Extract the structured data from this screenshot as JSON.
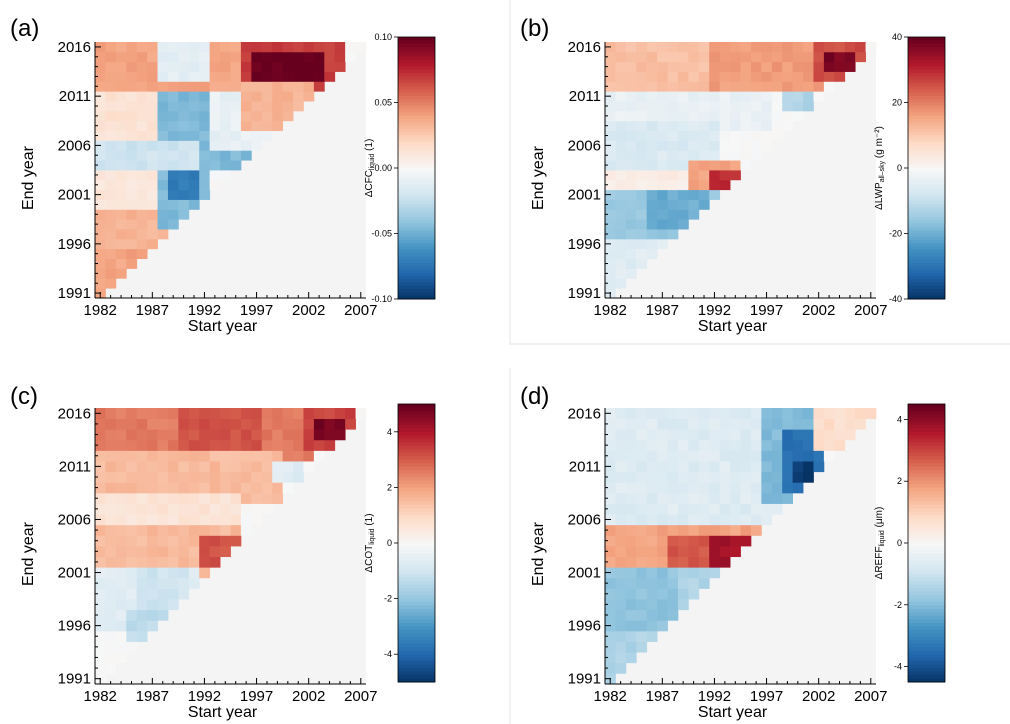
{
  "chart_data": [
    {
      "type": "heatmap",
      "panel_label": "(a)",
      "xlabel": "Start year",
      "ylabel": "End year",
      "x_ticks": [
        1982,
        1987,
        1992,
        1997,
        2002,
        2007
      ],
      "y_ticks": [
        1991,
        1996,
        2001,
        2006,
        2011,
        2016
      ],
      "x_range": [
        1982,
        2007
      ],
      "y_range": [
        1991,
        2016
      ],
      "colorbar": {
        "label_main": "ΔCFC",
        "label_sub": "liquid",
        "label_unit": " (1)",
        "range": [
          -0.1,
          0.1
        ],
        "ticks": [
          "0.10",
          "0.05",
          "0.00",
          "-0.05",
          "-0.10"
        ]
      },
      "features": [
        {
          "s0": 1982,
          "s1": 1996,
          "e0": 2012,
          "e1": 2016,
          "v": 0.04
        },
        {
          "s0": 1996,
          "s1": 2005,
          "e0": 2012,
          "e1": 2016,
          "v": 0.07
        },
        {
          "s0": 1997,
          "s1": 2003,
          "e0": 2013,
          "e1": 2015,
          "v": 0.1
        },
        {
          "s0": 1988,
          "s1": 1992,
          "e0": 2013,
          "e1": 2016,
          "v": -0.01
        },
        {
          "s0": 1982,
          "s1": 1992,
          "e0": 1995,
          "e1": 1999,
          "v": 0.035
        },
        {
          "s0": 1982,
          "s1": 1986,
          "e0": 1991,
          "e1": 1995,
          "v": 0.04
        },
        {
          "s0": 1982,
          "s1": 1988,
          "e0": 2000,
          "e1": 2004,
          "v": 0.012
        },
        {
          "s0": 1982,
          "s1": 1988,
          "e0": 2005,
          "e1": 2011,
          "v": 0.015
        },
        {
          "s0": 1988,
          "s1": 1992,
          "e0": 1998,
          "e1": 2011,
          "v": -0.045
        },
        {
          "s0": 1989,
          "s1": 1991,
          "e0": 2001,
          "e1": 2006,
          "v": -0.07
        },
        {
          "s0": 1982,
          "s1": 1996,
          "e0": 2004,
          "e1": 2006,
          "v": -0.02
        },
        {
          "s0": 1992,
          "s1": 1997,
          "e0": 2004,
          "e1": 2006,
          "v": -0.045
        },
        {
          "s0": 1993,
          "s1": 1999,
          "e0": 2006,
          "e1": 2011,
          "v": -0.008
        },
        {
          "s0": 1996,
          "s1": 2002,
          "e0": 2008,
          "e1": 2012,
          "v": 0.035
        }
      ]
    },
    {
      "type": "heatmap",
      "panel_label": "(b)",
      "xlabel": "Start year",
      "ylabel": "End year",
      "x_ticks": [
        1982,
        1987,
        1992,
        1997,
        2002,
        2007
      ],
      "y_ticks": [
        1991,
        1996,
        2001,
        2006,
        2011,
        2016
      ],
      "x_range": [
        1982,
        2007
      ],
      "y_range": [
        1991,
        2016
      ],
      "colorbar": {
        "label_main": "ΔLWP",
        "label_sub": "all–sky",
        "label_unit": " (g m⁻²)",
        "range": [
          -40,
          40
        ],
        "ticks": [
          "40",
          "20",
          "0",
          "-20",
          "-40"
        ]
      },
      "features": [
        {
          "s0": 1982,
          "s1": 1992,
          "e0": 2012,
          "e1": 2016,
          "v": 12
        },
        {
          "s0": 1992,
          "s1": 2002,
          "e0": 2012,
          "e1": 2016,
          "v": 17
        },
        {
          "s0": 2002,
          "s1": 2006,
          "e0": 2013,
          "e1": 2016,
          "v": 26
        },
        {
          "s0": 2003,
          "s1": 2005,
          "e0": 2014,
          "e1": 2015,
          "v": 38
        },
        {
          "s0": 1982,
          "s1": 1997,
          "e0": 2008,
          "e1": 2011,
          "v": -3
        },
        {
          "s0": 1982,
          "s1": 1992,
          "e0": 2004,
          "e1": 2008,
          "v": -6
        },
        {
          "s0": 1982,
          "s1": 1990,
          "e0": 2002,
          "e1": 2003,
          "v": 3
        },
        {
          "s0": 1990,
          "s1": 1994,
          "e0": 2002,
          "e1": 2004,
          "v": 16
        },
        {
          "s0": 1992,
          "s1": 1994,
          "e0": 2002,
          "e1": 2003,
          "v": 30
        },
        {
          "s0": 1982,
          "s1": 1992,
          "e0": 1996,
          "e1": 2001,
          "v": -15
        },
        {
          "s0": 1986,
          "s1": 1991,
          "e0": 1998,
          "e1": 2001,
          "v": -20
        },
        {
          "s0": 1982,
          "s1": 1990,
          "e0": 1991,
          "e1": 1996,
          "v": -5
        },
        {
          "s0": 1999,
          "s1": 2001,
          "e0": 2010,
          "e1": 2011,
          "v": -12
        }
      ]
    },
    {
      "type": "heatmap",
      "panel_label": "(c)",
      "xlabel": "Start year",
      "ylabel": "End year",
      "x_ticks": [
        1982,
        1987,
        1992,
        1997,
        2002,
        2007
      ],
      "y_ticks": [
        1991,
        1996,
        2001,
        2006,
        2011,
        2016
      ],
      "x_range": [
        1982,
        2007
      ],
      "y_range": [
        1991,
        2016
      ],
      "colorbar": {
        "label_main": "ΔCOT",
        "label_sub": "liquid",
        "label_unit": " (1)",
        "range": [
          -5,
          5
        ],
        "ticks": [
          "4",
          "2",
          "0",
          "-2",
          "-4"
        ]
      },
      "features": [
        {
          "s0": 1982,
          "s1": 2002,
          "e0": 2012,
          "e1": 2016,
          "v": 2.6
        },
        {
          "s0": 1990,
          "s1": 1997,
          "e0": 2013,
          "e1": 2016,
          "v": 3.2
        },
        {
          "s0": 1982,
          "s1": 1999,
          "e0": 2008,
          "e1": 2012,
          "v": 1.6
        },
        {
          "s0": 1982,
          "s1": 1995,
          "e0": 2005,
          "e1": 2008,
          "v": 0.7
        },
        {
          "s0": 1982,
          "s1": 1995,
          "e0": 2001,
          "e1": 2005,
          "v": 1.6
        },
        {
          "s0": 1992,
          "s1": 1995,
          "e0": 2002,
          "e1": 2004,
          "v": 3.2
        },
        {
          "s0": 2002,
          "s1": 2006,
          "e0": 2013,
          "e1": 2016,
          "v": 3.4
        },
        {
          "s0": 2003,
          "s1": 2005,
          "e0": 2014,
          "e1": 2015,
          "v": 4.8
        },
        {
          "s0": 1982,
          "s1": 1991,
          "e0": 1996,
          "e1": 2001,
          "v": -0.6
        },
        {
          "s0": 1986,
          "s1": 1990,
          "e0": 1998,
          "e1": 2001,
          "v": -1.0
        },
        {
          "s0": 1985,
          "s1": 1988,
          "e0": 1995,
          "e1": 1997,
          "v": -1.3
        },
        {
          "s0": 1999,
          "s1": 2001,
          "e0": 2010,
          "e1": 2011,
          "v": -0.6
        }
      ]
    },
    {
      "type": "heatmap",
      "panel_label": "(d)",
      "xlabel": "Start year",
      "ylabel": "End year",
      "x_ticks": [
        1982,
        1987,
        1992,
        1997,
        2002,
        2007
      ],
      "y_ticks": [
        1991,
        1996,
        2001,
        2006,
        2011,
        2016
      ],
      "x_range": [
        1982,
        2007
      ],
      "y_range": [
        1991,
        2016
      ],
      "colorbar": {
        "label_main": "ΔREFF",
        "label_sub": "liquid",
        "label_unit": " (μm)",
        "range": [
          -4.5,
          4.5
        ],
        "ticks": [
          "4",
          "2",
          "0",
          "-2",
          "-4"
        ]
      },
      "features": [
        {
          "s0": 1982,
          "s1": 1998,
          "e0": 2005,
          "e1": 2016,
          "v": -0.6
        },
        {
          "s0": 1997,
          "s1": 2002,
          "e0": 2008,
          "e1": 2016,
          "v": -2.0
        },
        {
          "s0": 1999,
          "s1": 2002,
          "e0": 2009,
          "e1": 2014,
          "v": -3.4
        },
        {
          "s0": 2000,
          "s1": 2001,
          "e0": 2010,
          "e1": 2011,
          "v": -4.3
        },
        {
          "s0": 2002,
          "s1": 2007,
          "e0": 2013,
          "e1": 2016,
          "v": 0.8
        },
        {
          "s0": 1982,
          "s1": 1997,
          "e0": 2001,
          "e1": 2005,
          "v": 1.8
        },
        {
          "s0": 1988,
          "s1": 1995,
          "e0": 2001,
          "e1": 2004,
          "v": 2.8
        },
        {
          "s0": 1992,
          "s1": 1995,
          "e0": 2002,
          "e1": 2004,
          "v": 3.8
        },
        {
          "s0": 1982,
          "s1": 1994,
          "e0": 1991,
          "e1": 2001,
          "v": -1.4
        },
        {
          "s0": 1982,
          "s1": 1988,
          "e0": 1996,
          "e1": 2001,
          "v": -1.8
        }
      ]
    }
  ]
}
